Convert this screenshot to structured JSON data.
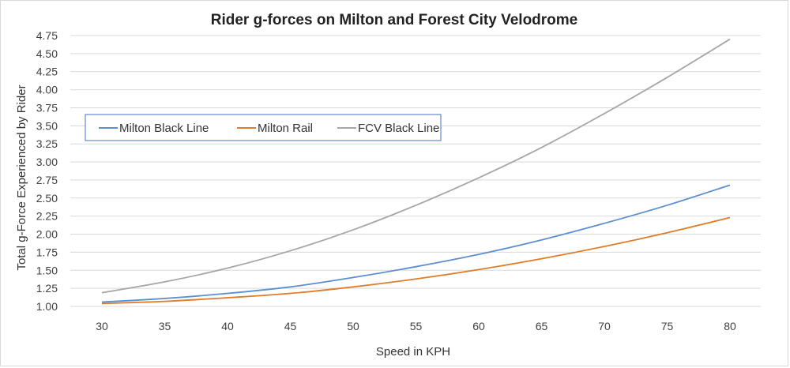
{
  "chart_data": {
    "type": "line",
    "title": "Rider g-forces on Milton and Forest City Velodrome",
    "xlabel": "Speed in KPH",
    "ylabel": "Total g-Force Experienced by Rider",
    "x": [
      30,
      35,
      40,
      45,
      50,
      55,
      60,
      65,
      70,
      75,
      80
    ],
    "ylim": [
      1.0,
      4.75
    ],
    "yticks": [
      "1.00",
      "1.25",
      "1.50",
      "1.75",
      "2.00",
      "2.25",
      "2.50",
      "2.75",
      "3.00",
      "3.25",
      "3.50",
      "3.75",
      "4.00",
      "4.25",
      "4.50",
      "4.75"
    ],
    "grid": true,
    "legend_position": "upper-left (boxed)",
    "series": [
      {
        "name": "Milton Black Line",
        "color": "#5b8fd1",
        "values": [
          1.06,
          1.11,
          1.18,
          1.27,
          1.4,
          1.55,
          1.72,
          1.92,
          2.15,
          2.4,
          2.68
        ]
      },
      {
        "name": "Milton Rail",
        "color": "#e07b29",
        "values": [
          1.04,
          1.07,
          1.12,
          1.18,
          1.27,
          1.38,
          1.51,
          1.66,
          1.83,
          2.02,
          2.23
        ]
      },
      {
        "name": "FCV Black Line",
        "color": "#a6a6a6",
        "values": [
          1.19,
          1.34,
          1.53,
          1.77,
          2.06,
          2.4,
          2.78,
          3.2,
          3.67,
          4.17,
          4.7
        ]
      }
    ]
  }
}
